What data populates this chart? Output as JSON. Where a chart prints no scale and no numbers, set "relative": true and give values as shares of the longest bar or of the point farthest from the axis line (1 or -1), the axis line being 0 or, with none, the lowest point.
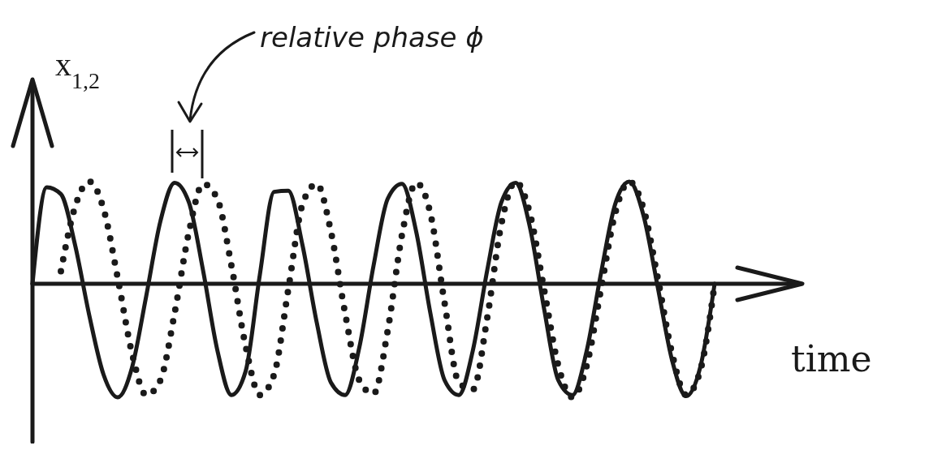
{
  "chart_data": {
    "type": "line",
    "relative": true,
    "xlabel": "time",
    "ylabel": "x$_{1,2}$",
    "annotations": [
      "relative phase ϕ"
    ],
    "marker": "none",
    "categories": [
      null,
      null,
      null,
      null,
      null,
      null,
      null,
      null,
      null,
      null,
      null,
      null,
      null,
      null,
      null,
      null,
      null,
      null,
      null,
      null,
      null,
      null,
      null,
      null,
      null,
      null,
      null,
      null,
      null,
      null,
      null,
      null,
      null,
      null,
      null,
      null,
      null,
      null,
      null,
      null,
      null,
      null,
      null,
      null,
      null,
      null,
      null,
      null,
      null
    ],
    "series": [
      {
        "color": "#1a1a1a",
        "line_style": "solid",
        "values": [
          0,
          0.85,
          0.79,
          0.34,
          -0.28,
          -0.8,
          -1,
          -0.74,
          -0.11,
          0.55,
          0.89,
          0.72,
          0.12,
          -0.58,
          -0.98,
          -0.77,
          0.08,
          0.81,
          0.82,
          0.34,
          -0.34,
          -0.87,
          -0.98,
          -0.56,
          0.16,
          0.75,
          0.88,
          0.46,
          -0.26,
          -0.85,
          -0.98,
          -0.58,
          0.12,
          0.72,
          0.89,
          0.5,
          -0.22,
          -0.85,
          -0.98,
          -0.59,
          0.09,
          0.7,
          0.9,
          0.6,
          -0.03,
          -0.67,
          -0.99,
          -0.73,
          0
        ]
      },
      {
        "color": "#1a1a1a",
        "line_style": "dotted",
        "values": [
          null,
          null,
          0.11,
          0.68,
          0.9,
          0.66,
          0.05,
          -0.61,
          -0.98,
          -0.85,
          -0.26,
          0.45,
          0.88,
          0.75,
          0.16,
          -0.55,
          -0.98,
          -0.8,
          -0.05,
          0.7,
          0.88,
          0.46,
          -0.26,
          -0.85,
          -0.97,
          -0.41,
          0.43,
          0.89,
          0.62,
          -0.17,
          -0.87,
          -0.93,
          -0.3,
          0.53,
          0.9,
          0.62,
          -0.05,
          -0.72,
          -1,
          -0.72,
          -0.05,
          0.62,
          0.9,
          0.66,
          0.05,
          -0.61,
          -0.98,
          -0.76,
          0
        ]
      }
    ]
  }
}
